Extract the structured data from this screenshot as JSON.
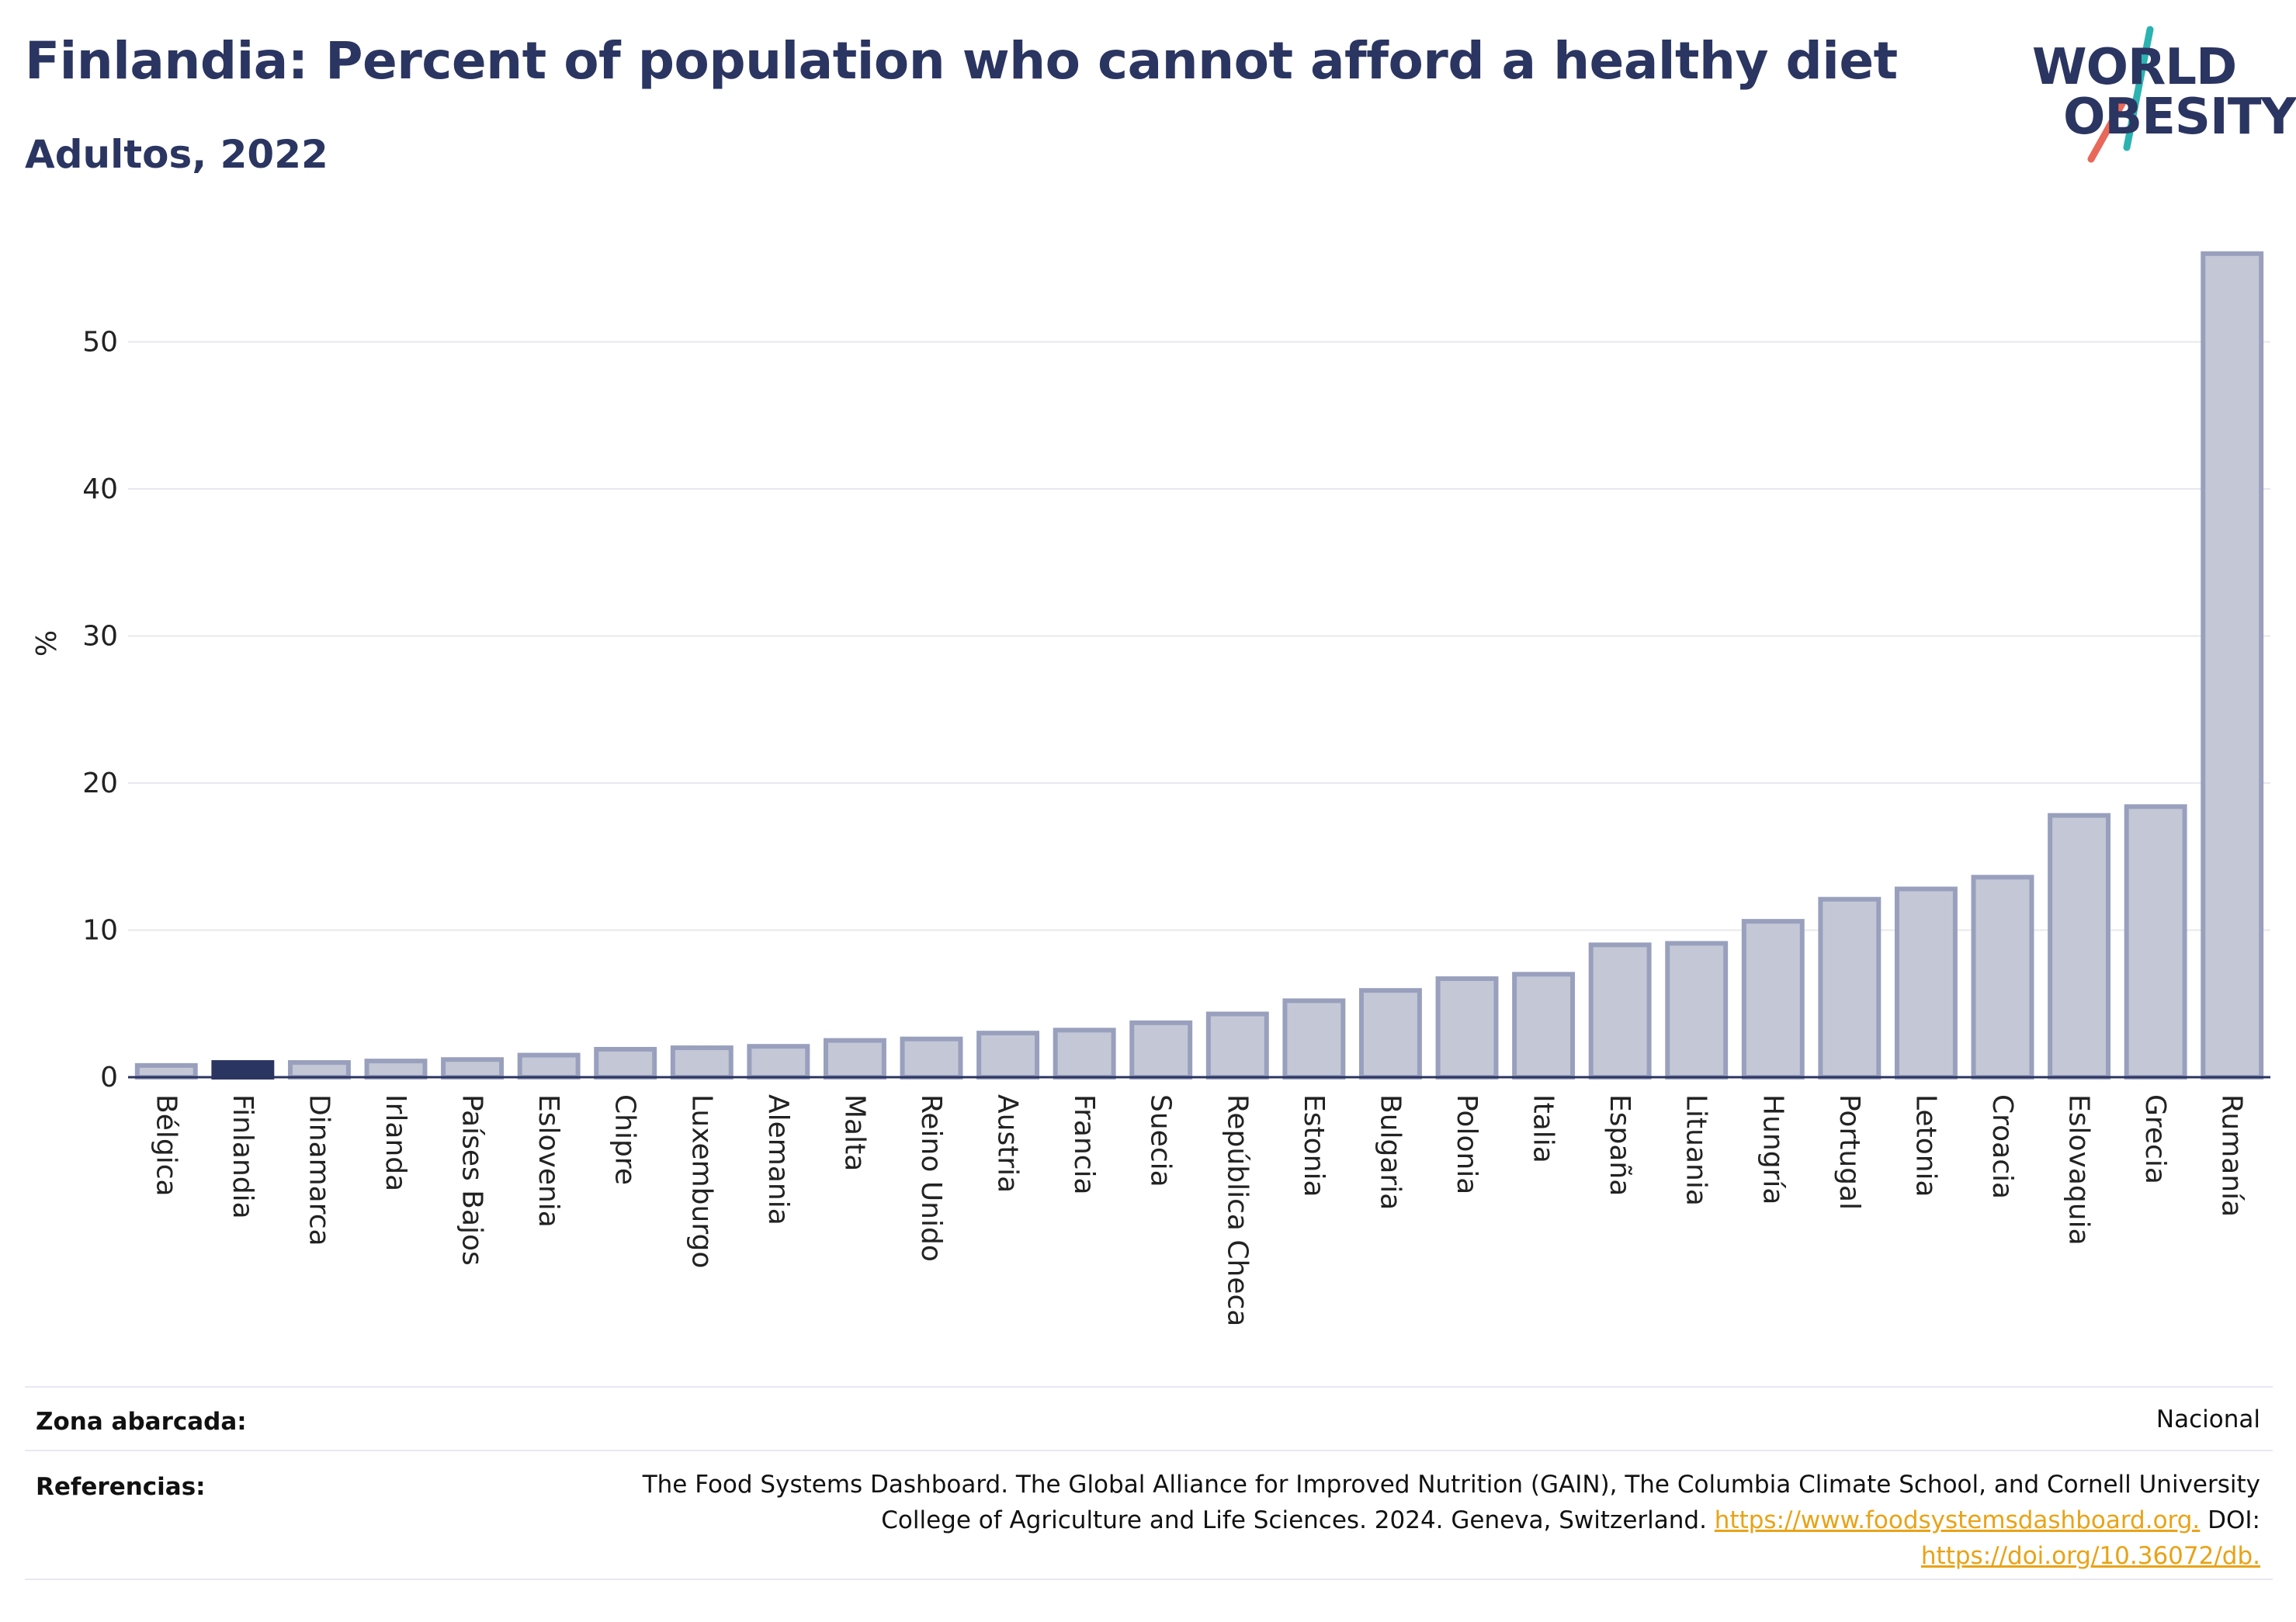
{
  "header": {
    "title": "Finlandia: Percent of population who cannot afford a healthy diet",
    "subtitle": "Adultos, 2022"
  },
  "logo": {
    "line1": "WORLD",
    "line2": "OBESITY"
  },
  "colors": {
    "highlight": "#2b3561",
    "bar_fill": "#c4c8d6",
    "bar_stroke": "#99a0bd",
    "grid": "#e8e8ee",
    "logo_teal": "#2bb3b1",
    "logo_coral": "#e8685a"
  },
  "chart_data": {
    "type": "bar",
    "ylabel": "%",
    "ylim": [
      0,
      57
    ],
    "yticks": [
      0,
      10,
      20,
      30,
      40,
      50
    ],
    "grid": true,
    "highlight": "Finlandia",
    "categories": [
      "Bélgica",
      "Finlandia",
      "Dinamarca",
      "Irlanda",
      "Países Bajos",
      "Eslovenia",
      "Chipre",
      "Luxemburgo",
      "Alemania",
      "Malta",
      "Reino Unido",
      "Austria",
      "Francia",
      "Suecia",
      "República Checa",
      "Estonia",
      "Bulgaria",
      "Polonia",
      "Italia",
      "España",
      "Lituania",
      "Hungría",
      "Portugal",
      "Letonia",
      "Croacia",
      "Eslovaquia",
      "Grecia",
      "Rumanía"
    ],
    "values": [
      0.8,
      1.0,
      1.0,
      1.1,
      1.2,
      1.5,
      1.9,
      2.0,
      2.1,
      2.5,
      2.6,
      3.0,
      3.2,
      3.7,
      4.3,
      5.2,
      5.9,
      6.7,
      7.0,
      9.0,
      9.1,
      10.6,
      12.1,
      12.8,
      13.6,
      17.8,
      18.4,
      56.0
    ]
  },
  "footer": {
    "zona_label": "Zona abarcada:",
    "zona_value": "Nacional",
    "ref_label": "Referencias:",
    "ref_text1": "The Food Systems Dashboard. The Global Alliance for Improved Nutrition (GAIN), The Columbia Climate School, and Cornell University",
    "ref_text2": "College of Agriculture and Life Sciences. 2024. Geneva, Switzerland.",
    "ref_link1": "https://www.foodsystemsdashboard.org.",
    "ref_doi": "DOI:",
    "ref_link2": "https://doi.org/10.36072/db."
  }
}
